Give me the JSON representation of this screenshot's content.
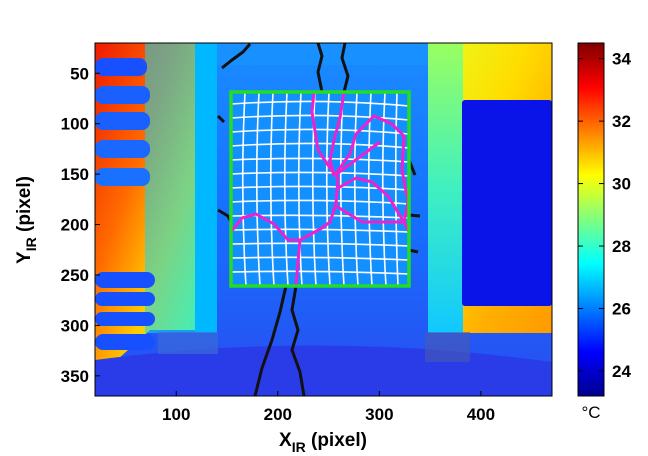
{
  "figure": {
    "x_axis": {
      "label_main": "X",
      "label_sub": "IR",
      "label_rest": " (pixel)",
      "range": [
        20,
        470
      ],
      "ticks": [
        100,
        200,
        300,
        400
      ]
    },
    "y_axis": {
      "label_main": "Y",
      "label_sub": "IR",
      "label_rest": " (pixel)",
      "range": [
        20,
        370
      ],
      "ticks": [
        50,
        100,
        150,
        200,
        250,
        300,
        350
      ]
    },
    "colorbar": {
      "unit": "°C",
      "range": [
        23.2,
        34.5
      ],
      "ticks": [
        24,
        26,
        28,
        30,
        32,
        34
      ]
    },
    "overlay": {
      "roi_box": {
        "x": [
          155,
          332
        ],
        "y": [
          68,
          263
        ]
      },
      "roi_color": "#22dd22",
      "mesh_color": "#ffffff",
      "crack_color": "#ee22cc",
      "crack_outline_color": "#111111"
    }
  }
}
